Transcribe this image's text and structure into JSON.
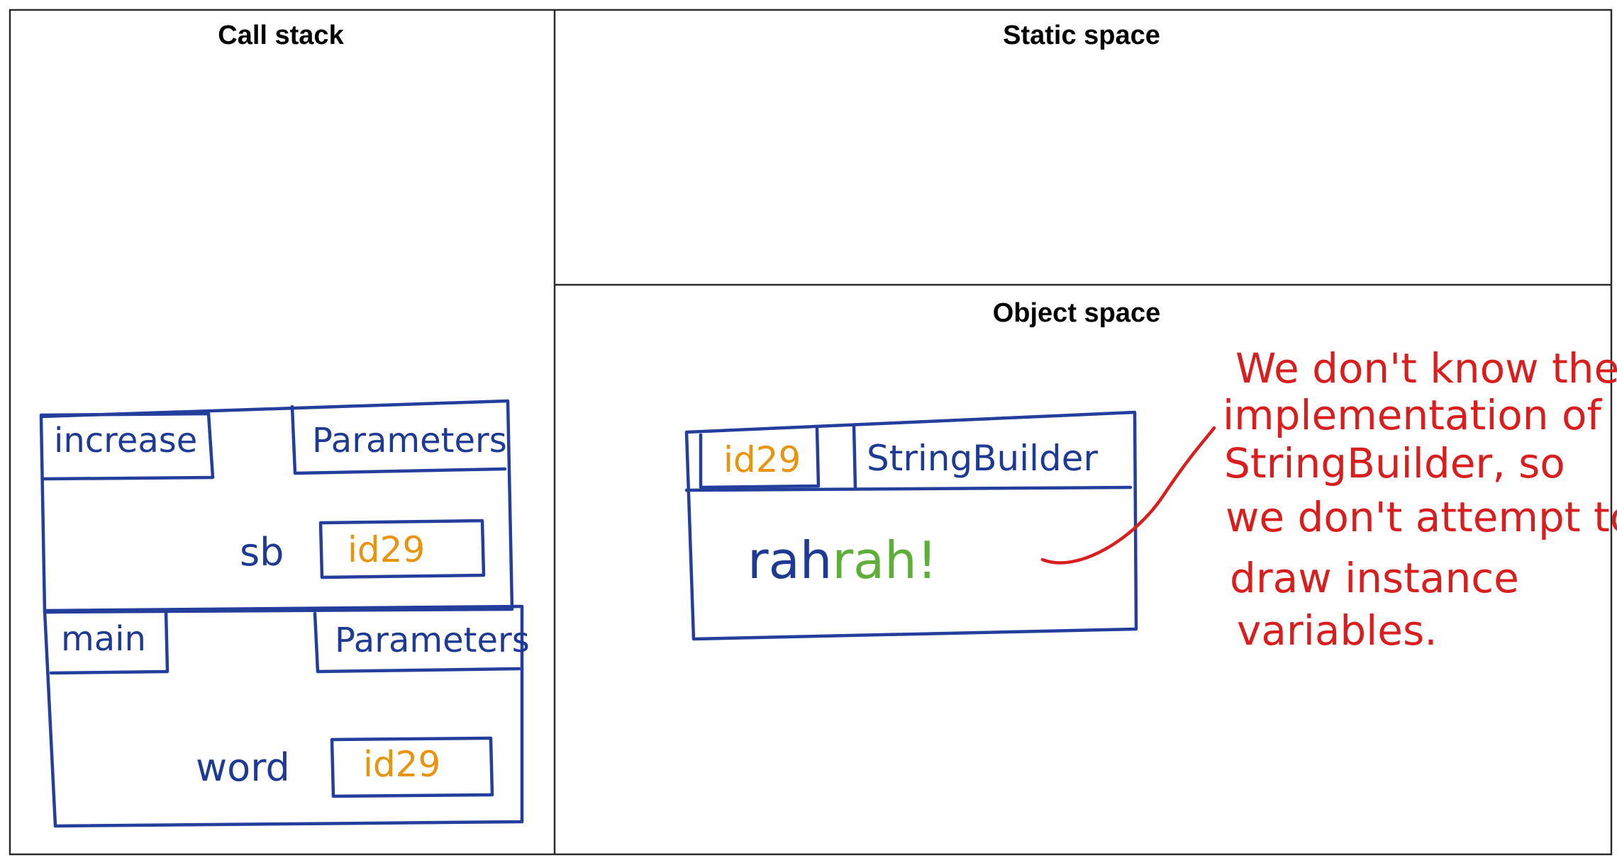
{
  "panels": {
    "call_stack": "Call stack",
    "static_space": "Static space",
    "object_space": "Object space"
  },
  "frames": [
    {
      "method": "increase",
      "params_label": "Parameters",
      "variable": "sb",
      "value": "id29"
    },
    {
      "method": "main",
      "params_label": "Parameters",
      "variable": "word",
      "value": "id29"
    }
  ],
  "object": {
    "id": "id29",
    "type": "StringBuilder",
    "contents": [
      "rah",
      "rah",
      "!"
    ]
  },
  "note": {
    "lines": [
      "We don't know the",
      "implementation of",
      "StringBuilder, so",
      "we don't attempt to",
      "draw instance",
      "variables."
    ]
  },
  "colors": {
    "ink_blue": "#1f3a93",
    "ink_orange": "#e8940f",
    "ink_green": "#5fae3a",
    "ink_red": "#d81e1e"
  }
}
